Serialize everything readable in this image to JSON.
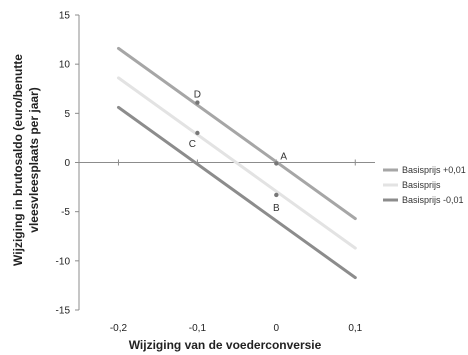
{
  "chart_data": {
    "type": "line",
    "xlabel": "Wijziging van de voederconversie",
    "ylabel": "Wijziging in brutosaldo (euro/benutte vleesvleesplaats per jaar)",
    "ylabel_lines": [
      "Wijziging in brutosaldo (euro/benutte",
      "vleesvleesplaats per jaar)"
    ],
    "xlim": [
      -0.25,
      0.125
    ],
    "ylim": [
      -15,
      15
    ],
    "x_ticks": [
      -0.2,
      -0.1,
      0,
      0.1
    ],
    "x_tick_labels": [
      "-0,2",
      "-0,1",
      "0",
      "0,1"
    ],
    "y_ticks": [
      -15,
      -10,
      -5,
      0,
      5,
      10,
      15
    ],
    "y_tick_labels": [
      "-15",
      "-10",
      "-5",
      "0",
      "5",
      "10",
      "15"
    ],
    "grid": false,
    "legend_position": "right",
    "series": [
      {
        "name": "Basisprijs +0,01",
        "color": "#a6a6a6",
        "x": [
          -0.2,
          0.1
        ],
        "y": [
          11.6,
          -5.7
        ]
      },
      {
        "name": "Basisprijs",
        "color": "#e3e3e3",
        "x": [
          -0.2,
          0.1
        ],
        "y": [
          8.6,
          -8.7
        ]
      },
      {
        "name": "Basisprijs -0,01",
        "color": "#8c8c8c",
        "x": [
          -0.2,
          0.1
        ],
        "y": [
          5.6,
          -11.7
        ]
      }
    ],
    "points": [
      {
        "label": "A",
        "x": 0,
        "y": -0.1
      },
      {
        "label": "B",
        "x": 0,
        "y": -3.3
      },
      {
        "label": "C",
        "x": -0.1,
        "y": 3.0
      },
      {
        "label": "D",
        "x": -0.1,
        "y": 6.1
      }
    ]
  }
}
